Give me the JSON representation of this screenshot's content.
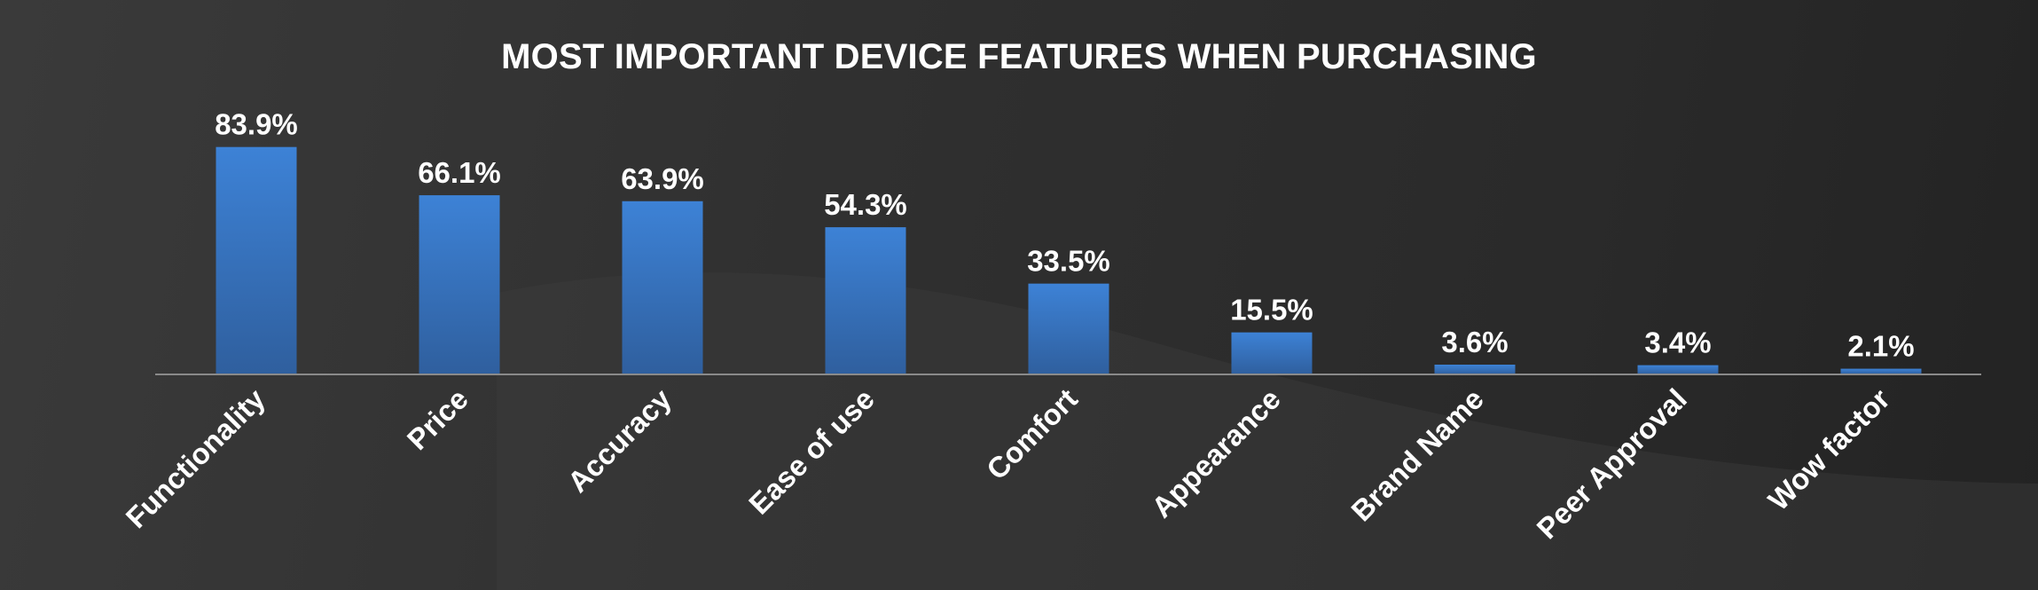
{
  "chart_data": {
    "type": "bar",
    "title": "MOST IMPORTANT DEVICE FEATURES WHEN PURCHASING",
    "categories": [
      "Functionality",
      "Price",
      "Accuracy",
      "Ease of use",
      "Comfort",
      "Appearance",
      "Brand Name",
      "Peer Approval",
      "Wow factor"
    ],
    "values": [
      83.9,
      66.1,
      63.9,
      54.3,
      33.5,
      15.5,
      3.6,
      3.4,
      2.1
    ],
    "value_labels": [
      "83.9%",
      "66.1%",
      "63.9%",
      "54.3%",
      "33.5%",
      "15.5%",
      "3.6%",
      "3.4%",
      "2.1%"
    ],
    "unit": "%",
    "xlabel": "",
    "ylabel": "",
    "ylim": [
      0,
      100
    ],
    "grid": false,
    "legend": "none",
    "colors": {
      "bar_top": "#3d82d6",
      "bar_bottom": "#2f5f9e",
      "baseline": "#8a8a8a",
      "text": "#ffffff",
      "background": "#2e2e2e"
    }
  }
}
